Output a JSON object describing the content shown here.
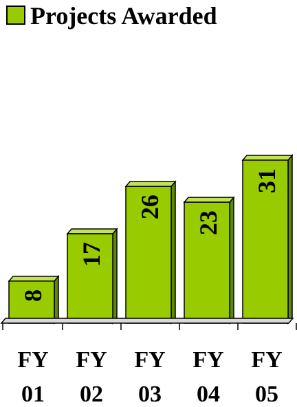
{
  "chart_data": {
    "type": "bar",
    "legend": {
      "label": "Projects Awarded",
      "position": "top-left"
    },
    "categories": [
      {
        "line1": "FY",
        "line2": "01"
      },
      {
        "line1": "FY",
        "line2": "02"
      },
      {
        "line1": "FY",
        "line2": "03"
      },
      {
        "line1": "FY",
        "line2": "04"
      },
      {
        "line1": "FY",
        "line2": "05"
      }
    ],
    "series": [
      {
        "name": "Projects Awarded",
        "values": [
          8,
          17,
          26,
          23,
          31
        ]
      }
    ],
    "data_labels": [
      "8",
      "17",
      "26",
      "23",
      "31"
    ],
    "ylim": [
      0,
      34
    ],
    "grid": false,
    "bar_style": "3d",
    "colors": {
      "bar_front": "#99cc00",
      "bar_side": "#5c8a00",
      "bar_top": "#c2e25a",
      "outline": "#000000"
    }
  }
}
